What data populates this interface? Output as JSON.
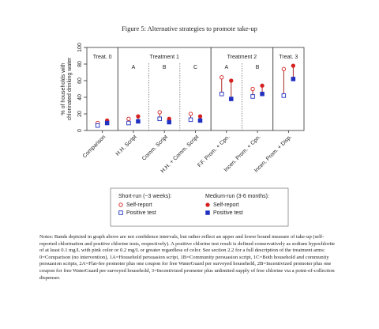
{
  "chart_data": {
    "type": "range-dot",
    "title": "Figure 5: Alternative strategies to promote take-up",
    "ylabel": [
      "% of households with",
      "chlorinated drinking water"
    ],
    "ylim": [
      0,
      100
    ],
    "yticks": [
      0,
      20,
      40,
      60,
      80,
      100
    ],
    "panels": [
      {
        "label": "Treat. 0",
        "subgroups": [
          {
            "categories": [
              "Comparison"
            ]
          }
        ]
      },
      {
        "label": "Treatment 1",
        "subgroups": [
          {
            "label": "A",
            "categories": [
              "H.H. Script"
            ]
          },
          {
            "label": "B",
            "categories": [
              "Comm. Script"
            ]
          },
          {
            "label": "C",
            "categories": [
              "H.H. + Comm. Script"
            ]
          }
        ]
      },
      {
        "label": "Treatment 2",
        "subgroups": [
          {
            "label": "A",
            "categories": [
              "F.F. Prom. + Cpn."
            ]
          },
          {
            "label": "B",
            "categories": [
              "Incen. Prom. + Cpn."
            ]
          }
        ]
      },
      {
        "label": "Treat. 3",
        "subgroups": [
          {
            "categories": [
              "Incen. Prom. + Disp."
            ]
          }
        ]
      }
    ],
    "series_groups": [
      {
        "name": "Short-run (~3 weeks):",
        "series": [
          {
            "name": "Self-report",
            "color": "#d62020",
            "marker": "hollow-circle",
            "values": [
              9,
              14,
              22,
              20,
              64,
              50,
              74
            ]
          },
          {
            "name": "Positive test",
            "color": "#2030c0",
            "marker": "hollow-square",
            "values": [
              6,
              9,
              14,
              13,
              44,
              41,
              42
            ]
          }
        ]
      },
      {
        "name": "Medium-run (3-6 months):",
        "series": [
          {
            "name": "Self-report",
            "color": "#d62020",
            "marker": "filled-circle",
            "values": [
              12,
              17,
              14,
              17,
              60,
              54,
              78
            ]
          },
          {
            "name": "Positive test",
            "color": "#2030c0",
            "marker": "filled-square",
            "values": [
              9,
              11,
              10,
              12,
              38,
              44,
              62
            ]
          }
        ]
      }
    ],
    "range_color": "#a01010"
  },
  "notes": "Notes: Bands depicted in graph above are not confidence intervals, but rather reflect an upper and lower bound measure of take-up (self-reported chlorination and positive chlorine tests, respectively). A positive chlorine test result is defined conservatively as sodium hypochlorite of at least 0.1 mg/L with pink color or 0.2 mg/L or greater regardless of color. See section 2.2 for a full description of the treatment arms: 0=Comparison (no intervention), 1A=Household persuasion script, 1B=Community persuasion script, 1C=Both household and community persuasion scripts, 2A=Flat-fee promoter plus one coupon for free WaterGuard per surveyed household, 2B=Incentivized promoter plus one coupon for free WaterGuard per surveyed household, 3=Incentivized promoter plus unlimited supply of free chlorine via a point-of-collection dispenser."
}
